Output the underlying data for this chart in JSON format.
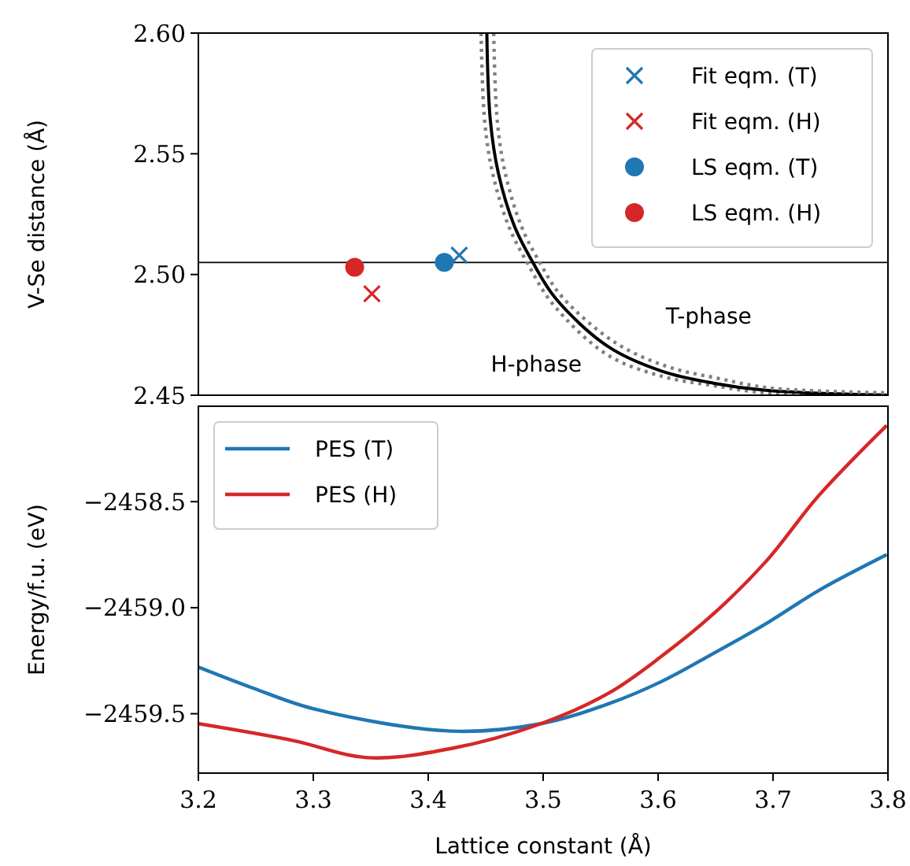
{
  "chart_data": [
    {
      "type": "line",
      "ylabel": "V-Se distance (Å)",
      "xlim": [
        3.2,
        3.8
      ],
      "ylim": [
        2.45,
        2.6
      ],
      "yticks": [
        2.45,
        {
          "value": 2.5,
          "label": "2.50"
        },
        2.55,
        {
          "value": 2.6,
          "label": "2.60"
        }
      ],
      "tick_labels": "y",
      "legend": "top right",
      "grid": false,
      "ref_lines": [
        {
          "axis": "y",
          "value": 2.505,
          "color": "#000000"
        }
      ],
      "annotations": [
        "T-phase",
        "H-phase"
      ],
      "series": [
        {
          "color": "#808080",
          "line_style": "dotted",
          "x": [
            3.446,
            3.449,
            3.456,
            3.47,
            3.486,
            3.508,
            3.555,
            3.602,
            3.648,
            3.694,
            3.8
          ],
          "values": [
            2.6,
            2.564,
            2.542,
            2.52,
            2.505,
            2.488,
            2.467,
            2.458,
            2.454,
            2.451,
            2.45
          ]
        },
        {
          "color": "#000000",
          "line_style": "solid",
          "x": [
            3.451,
            3.454,
            3.461,
            3.475,
            3.491,
            3.511,
            3.557,
            3.603,
            3.648,
            3.694,
            3.8
          ],
          "values": [
            2.6,
            2.564,
            2.542,
            2.52,
            2.505,
            2.49,
            2.47,
            2.46,
            2.455,
            2.452,
            2.45
          ]
        },
        {
          "color": "#808080",
          "line_style": "dotted",
          "x": [
            3.457,
            3.46,
            3.467,
            3.481,
            3.497,
            3.516,
            3.562,
            3.607,
            3.652,
            3.697,
            3.8
          ],
          "values": [
            2.6,
            2.564,
            2.542,
            2.52,
            2.505,
            2.491,
            2.472,
            2.462,
            2.457,
            2.453,
            2.451
          ]
        },
        {
          "type": "scatter",
          "name": "Fit eqm. (T)",
          "color": "#1f77b4",
          "marker": "cross",
          "x": [
            3.427
          ],
          "values": [
            2.508
          ]
        },
        {
          "type": "scatter",
          "name": "Fit eqm. (H)",
          "color": "#d62728",
          "marker": "cross",
          "x": [
            3.351
          ],
          "values": [
            2.492
          ]
        },
        {
          "type": "scatter",
          "name": "LS eqm. (T)",
          "color": "#1f77b4",
          "marker": "circle",
          "x": [
            3.414
          ],
          "values": [
            2.505
          ]
        },
        {
          "type": "scatter",
          "name": "LS eqm. (H)",
          "color": "#d62728",
          "marker": "circle",
          "x": [
            3.336
          ],
          "values": [
            2.503
          ]
        }
      ]
    },
    {
      "type": "line",
      "xlabel": "Lattice constant (Å)",
      "ylabel": "Energy/f.u. (eV)",
      "xlim": [
        3.2,
        3.8
      ],
      "ylim": [
        -2459.78,
        -2458.05
      ],
      "xticks": [
        3.2,
        3.3,
        3.4,
        3.5,
        3.6,
        3.7,
        3.8
      ],
      "yticks": [
        {
          "value": -2459.5,
          "label": "−2459.5"
        },
        {
          "value": -2459.0,
          "label": "−2459.0"
        },
        {
          "value": -2458.5,
          "label": "−2458.5"
        }
      ],
      "legend": "top left",
      "grid": false,
      "line_style": "solid",
      "series": [
        {
          "name": "PES (T)",
          "color": "#1f77b4",
          "x": [
            3.2,
            3.247,
            3.301,
            3.42,
            3.498,
            3.557,
            3.603,
            3.648,
            3.694,
            3.74,
            3.799
          ],
          "values": [
            -2459.28,
            -2459.378,
            -2459.478,
            -2459.582,
            -2459.547,
            -2459.453,
            -2459.348,
            -2459.216,
            -2459.075,
            -2458.918,
            -2458.75
          ]
        },
        {
          "name": "PES (H)",
          "color": "#d62728",
          "x": [
            3.2,
            3.283,
            3.347,
            3.42,
            3.498,
            3.557,
            3.603,
            3.648,
            3.694,
            3.74,
            3.799
          ],
          "values": [
            -2459.547,
            -2459.627,
            -2459.707,
            -2459.664,
            -2459.547,
            -2459.403,
            -2459.229,
            -2459.03,
            -2458.781,
            -2458.47,
            -2458.14
          ]
        }
      ]
    }
  ]
}
